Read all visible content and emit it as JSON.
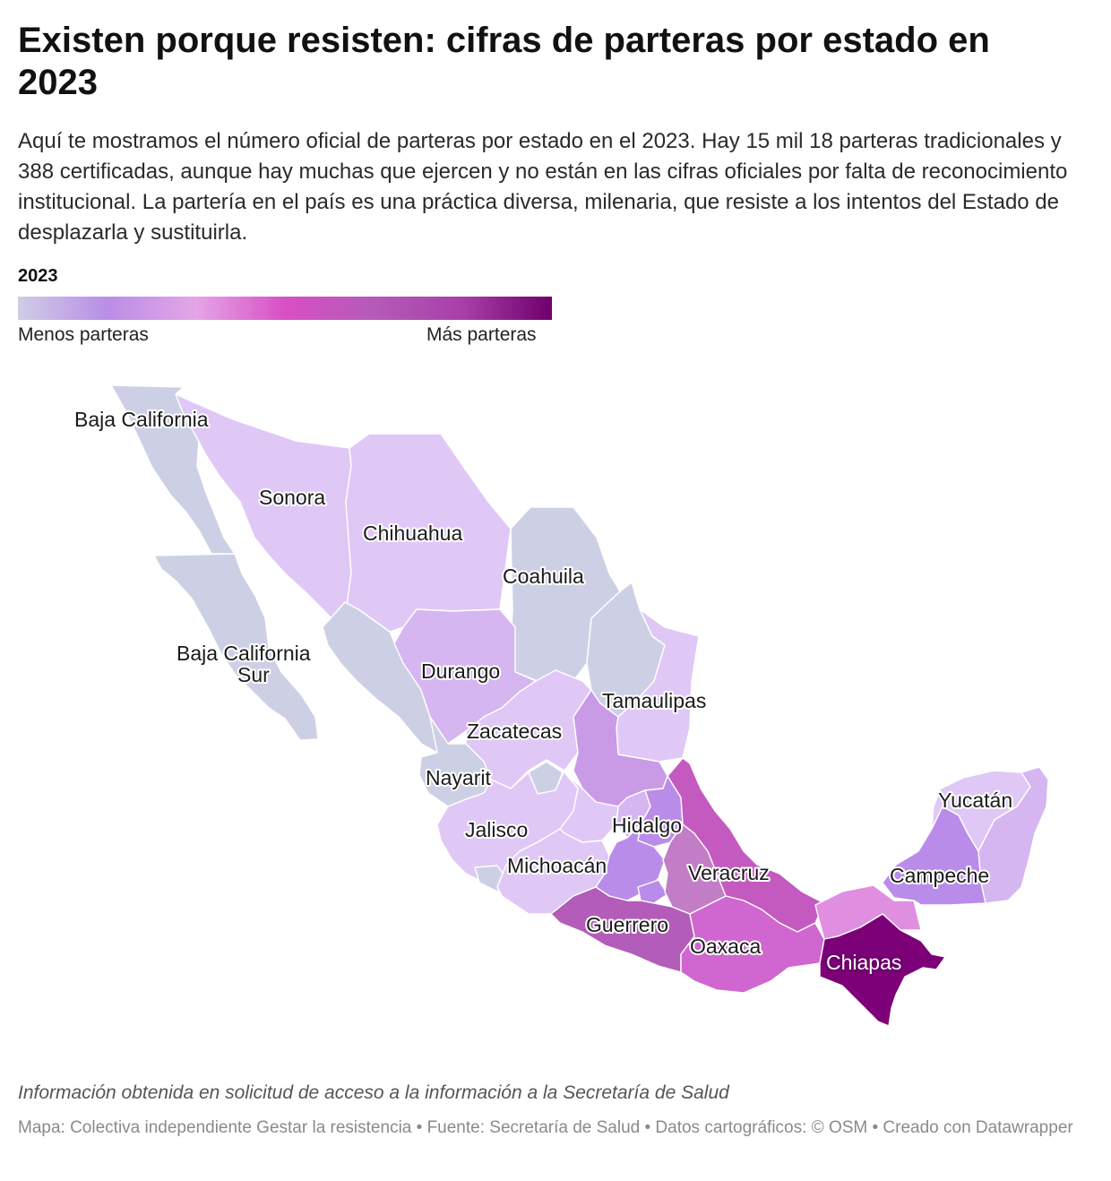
{
  "header": {
    "title": "Existen porque resisten: cifras de parteras por estado en 2023",
    "description": "Aquí te mostramos el número oficial de parteras por estado en el 2023. Hay 15 mil 18 parteras tradicionales y 388 certificadas, aunque hay muchas que ejercen y no están en las cifras oficiales por falta de reconocimiento institucional. La partería en el país es una práctica diversa, milenaria, que resiste a los intentos del Estado de desplazarla y sustituirla."
  },
  "legend": {
    "title": "2023",
    "low_label": "Menos parteras",
    "high_label": "Más parteras",
    "gradient_colors": [
      "#cfcde6",
      "#b98ee6",
      "#e4a5e6",
      "#d94fc4",
      "#b45bb8",
      "#a83fa8",
      "#6e006c"
    ]
  },
  "map": {
    "labels": {
      "baja_california": "Baja California",
      "sonora": "Sonora",
      "chihuahua": "Chihuahua",
      "coahuila": "Coahuila",
      "bcs_line1": "Baja California",
      "bcs_line2": "Sur",
      "durango": "Durango",
      "tamaulipas": "Tamaulipas",
      "zacatecas": "Zacatecas",
      "nayarit": "Nayarit",
      "yucatan": "Yucatán",
      "hidalgo": "Hidalgo",
      "jalisco": "Jalisco",
      "veracruz": "Veracruz",
      "michoacan": "Michoacán",
      "campeche": "Campeche",
      "guerrero": "Guerrero",
      "oaxaca": "Oaxaca",
      "chiapas": "Chiapas"
    },
    "colors": {
      "lowest": "#cdd0e5",
      "very_low": "#e0c8f6",
      "low": "#d5b6f0",
      "low_mid": "#c99be6",
      "mid_violet": "#b98cea",
      "mid_pink": "#dd86dc",
      "pink": "#e08ee0",
      "magenta": "#c45ac0",
      "purple_mid": "#b35cb9",
      "orchid": "#d066cf",
      "mauve": "#c27dc6",
      "darkest": "#7c0077"
    }
  },
  "footer": {
    "note": "Información obtenida en solicitud de acceso a la información a la Secretaría de Salud",
    "credits": "Mapa: Colectiva independiente Gestar la resistencia • Fuente: Secretaría de Salud • Datos cartográficos: © OSM  • Creado con Datawrapper"
  }
}
